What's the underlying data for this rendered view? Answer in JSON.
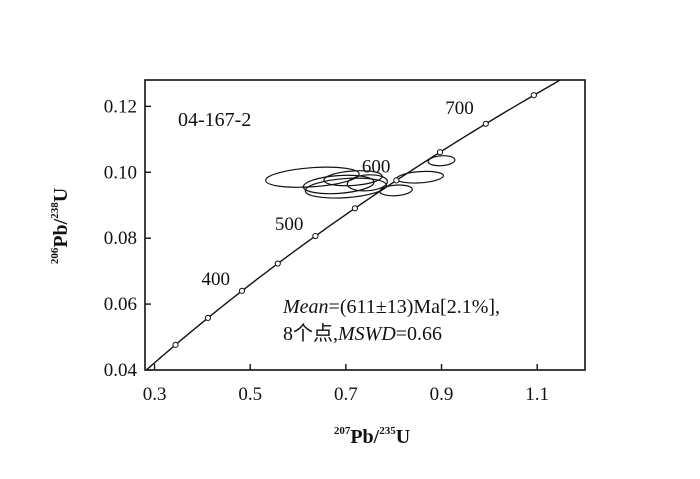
{
  "chart_data": {
    "type": "scatter",
    "title": "",
    "sample_id": "04-167-2",
    "xlabel": {
      "sup1": "207",
      "base1": "Pb/",
      "sup2": "235",
      "base2": "U"
    },
    "ylabel": {
      "sup1": "206",
      "base1": "Pb/",
      "sup2": "238",
      "base2": "U"
    },
    "xlim": [
      0.28,
      1.2
    ],
    "ylim": [
      0.04,
      0.128
    ],
    "xticks": [
      0.3,
      0.5,
      0.7,
      0.9,
      1.1
    ],
    "xtick_labels": [
      "0.3",
      "0.5",
      "0.7",
      "0.9",
      "1.1"
    ],
    "yticks": [
      0.04,
      0.06,
      0.08,
      0.1,
      0.12
    ],
    "ytick_labels": [
      "0.04",
      "0.06",
      "0.08",
      "0.10",
      "0.12"
    ],
    "grid": false,
    "concordia": {
      "age_labels": [
        {
          "age": 400,
          "text": "400"
        },
        {
          "age": 500,
          "text": "500"
        },
        {
          "age": 600,
          "text": "600"
        },
        {
          "age": 700,
          "text": "700"
        }
      ]
    },
    "ellipses": [
      {
        "x": 0.63,
        "y": 0.0985,
        "rx": 0.098,
        "ry": 0.0029
      },
      {
        "x": 0.7,
        "y": 0.0952,
        "rx": 0.085,
        "ry": 0.0029
      },
      {
        "x": 0.685,
        "y": 0.0963,
        "rx": 0.074,
        "ry": 0.0027
      },
      {
        "x": 0.715,
        "y": 0.0982,
        "rx": 0.061,
        "ry": 0.0022
      },
      {
        "x": 0.745,
        "y": 0.0968,
        "rx": 0.042,
        "ry": 0.0024
      },
      {
        "x": 0.805,
        "y": 0.0945,
        "rx": 0.034,
        "ry": 0.0016
      },
      {
        "x": 0.855,
        "y": 0.0985,
        "rx": 0.049,
        "ry": 0.0017
      },
      {
        "x": 0.9,
        "y": 0.1035,
        "rx": 0.028,
        "ry": 0.0015
      }
    ],
    "annotation": {
      "mean_label": "Mean",
      "mean_value": "=(611±13)Ma[2.1%],",
      "points_text": "8个点,",
      "mswd_label": "MSWD",
      "mswd_value": "=0.66"
    }
  }
}
